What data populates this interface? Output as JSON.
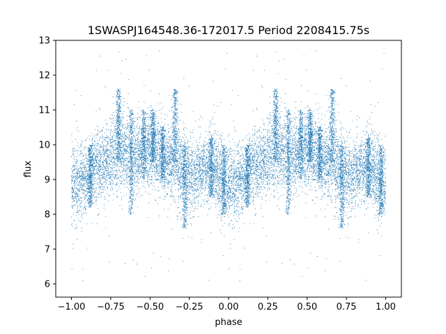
{
  "chart_data": {
    "type": "scatter",
    "title": "1SWASPJ164548.36-172017.5 Period 2208415.75s",
    "xlabel": "phase",
    "ylabel": "flux",
    "xlim": [
      -1.1,
      1.1
    ],
    "ylim": [
      5.62,
      13.0
    ],
    "xticks": [
      -1.0,
      -0.75,
      -0.5,
      -0.25,
      0.0,
      0.25,
      0.5,
      0.75,
      1.0
    ],
    "xtick_labels": [
      "−1.00",
      "−0.75",
      "−0.50",
      "−0.25",
      "0.00",
      "0.25",
      "0.50",
      "0.75",
      "1.00"
    ],
    "yticks": [
      6,
      7,
      8,
      9,
      10,
      11,
      12,
      13
    ],
    "ytick_labels": [
      "6",
      "7",
      "8",
      "9",
      "10",
      "11",
      "12",
      "13"
    ],
    "grid": false,
    "marker_color": "#1f77b4",
    "series": [
      {
        "profile": {
          "phase": [
            0.0,
            0.05,
            0.1,
            0.15,
            0.2,
            0.25,
            0.3,
            0.35,
            0.4,
            0.45,
            0.5,
            0.55,
            0.6,
            0.65,
            0.7,
            0.75,
            0.8,
            0.85,
            0.9,
            0.95,
            1.0
          ],
          "median_flux": [
            8.9,
            9.0,
            9.1,
            9.4,
            9.5,
            9.6,
            9.8,
            9.7,
            9.6,
            9.8,
            9.9,
            9.7,
            9.5,
            9.6,
            9.3,
            9.1,
            9.2,
            9.4,
            9.3,
            9.0,
            8.9
          ],
          "typical_scatter": [
            0.55,
            0.55,
            0.5,
            0.5,
            0.5,
            0.55,
            0.6,
            0.55,
            0.5,
            0.5,
            0.5,
            0.5,
            0.5,
            0.5,
            0.6,
            0.6,
            0.5,
            0.5,
            0.55,
            0.55,
            0.55
          ]
        },
        "dense_streaks": [
          {
            "phase": 0.3,
            "flux_range": [
              9.5,
              11.6
            ]
          },
          {
            "phase": 0.12,
            "flux_range": [
              8.2,
              10.0
            ]
          },
          {
            "phase": 0.38,
            "flux_range": [
              8.0,
              11.0
            ]
          },
          {
            "phase": 0.46,
            "flux_range": [
              9.0,
              11.0
            ]
          },
          {
            "phase": 0.52,
            "flux_range": [
              9.5,
              11.0
            ]
          },
          {
            "phase": 0.58,
            "flux_range": [
              9.0,
              10.5
            ]
          },
          {
            "phase": 0.66,
            "flux_range": [
              9.5,
              11.6
            ]
          },
          {
            "phase": 0.72,
            "flux_range": [
              7.6,
              10.0
            ]
          },
          {
            "phase": 0.89,
            "flux_range": [
              8.5,
              10.2
            ]
          },
          {
            "phase": 0.97,
            "flux_range": [
              8.0,
              10.0
            ]
          }
        ],
        "point_count": 9000,
        "outlier_range": [
          5.9,
          12.7
        ]
      }
    ]
  }
}
